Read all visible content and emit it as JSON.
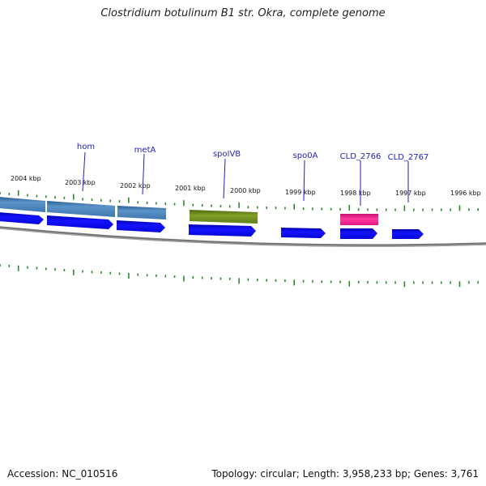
{
  "title": "Clostridium botulinum B1 str. Okra, complete genome",
  "footer": {
    "accession": "Accession: NC_010516",
    "summary": "Topology: circular; Length: 3,958,233 bp; Genes: 3,761"
  },
  "ticks": [
    "2004 kbp",
    "2003 kbp",
    "2002 kbp",
    "2001 kbp",
    "2000 kbp",
    "1999 kbp",
    "1998 kbp",
    "1997 kbp",
    "1996 kbp"
  ],
  "gene_labels": [
    "hom",
    "metA",
    "spoIVB",
    "spo0A",
    "CLD_2766",
    "CLD_2767"
  ],
  "colors": {
    "cds": "#0a0aee",
    "gene_blue": "#4a86c0",
    "gene_olive": "#6b8a1c",
    "gene_pink": "#ee1e8c",
    "label": "#1e1ec0",
    "tick": "#2a8a2a",
    "backbone": "#777777"
  }
}
